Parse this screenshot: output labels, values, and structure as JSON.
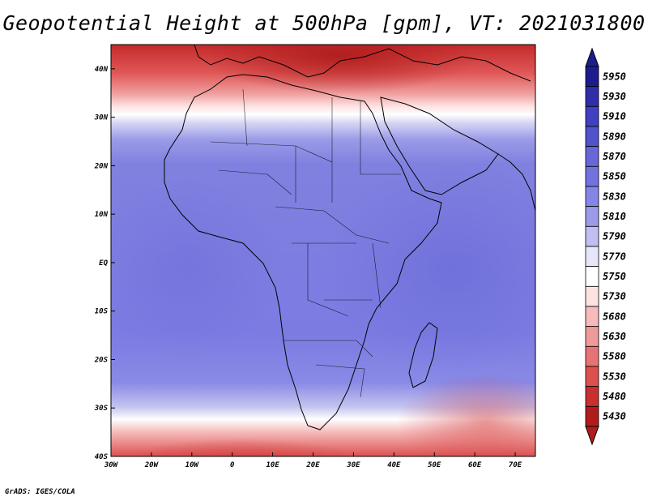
{
  "title": "Geopotential Height at 500hPa [gpm], VT: 2021031800",
  "credit": "GrADS: IGES/COLA",
  "map": {
    "variable": "Geopotential Height",
    "level": "500hPa",
    "units": "gpm",
    "valid_time": "2021031800",
    "lon_range": [
      -30,
      75
    ],
    "lat_range": [
      -40,
      45
    ],
    "lon_ticks": [
      {
        "value": -30,
        "label": "30W"
      },
      {
        "value": -20,
        "label": "20W"
      },
      {
        "value": -10,
        "label": "10W"
      },
      {
        "value": 0,
        "label": "0"
      },
      {
        "value": 10,
        "label": "10E"
      },
      {
        "value": 20,
        "label": "20E"
      },
      {
        "value": 30,
        "label": "30E"
      },
      {
        "value": 40,
        "label": "40E"
      },
      {
        "value": 50,
        "label": "50E"
      },
      {
        "value": 60,
        "label": "60E"
      },
      {
        "value": 70,
        "label": "70E"
      }
    ],
    "lat_ticks": [
      {
        "value": 40,
        "label": "40N"
      },
      {
        "value": 30,
        "label": "30N"
      },
      {
        "value": 20,
        "label": "20N"
      },
      {
        "value": 10,
        "label": "10N"
      },
      {
        "value": 0,
        "label": "EQ"
      },
      {
        "value": -10,
        "label": "10S"
      },
      {
        "value": -20,
        "label": "20S"
      },
      {
        "value": -30,
        "label": "30S"
      },
      {
        "value": -40,
        "label": "40S"
      }
    ]
  },
  "colorbar": {
    "levels": [
      5950,
      5930,
      5910,
      5890,
      5870,
      5850,
      5830,
      5810,
      5790,
      5770,
      5750,
      5730,
      5680,
      5630,
      5580,
      5530,
      5480,
      5430
    ],
    "colors": [
      "#1c1c8c",
      "#2e2ea8",
      "#4040c0",
      "#5252cc",
      "#6767d6",
      "#7373e0",
      "#8585e6",
      "#9b9be8",
      "#bfbff0",
      "#e6e6fa",
      "#ffffff",
      "#fde2e2",
      "#f6bcbc",
      "#ef9a9a",
      "#e77474",
      "#dc5050",
      "#c83030",
      "#b01c1c"
    ]
  }
}
